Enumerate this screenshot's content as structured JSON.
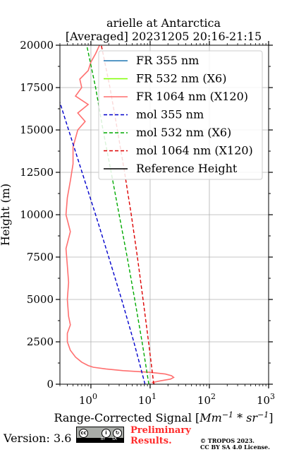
{
  "chart_data": {
    "type": "line",
    "title": "arielle at Antarctica",
    "subtitle": "[Averaged] 20231205 20:16-21:15",
    "xlabel": "Range-Corrected Signal [Mm⁻¹ * sr⁻¹]",
    "xlabel_parts": {
      "base": "Range-Corrected Signal [",
      "mm": "Mm",
      "exp1": "−1",
      "mid": " * sr",
      "exp2": "−1",
      "end": "]"
    },
    "ylabel": "Height (m)",
    "xscale": "log",
    "xlim": [
      0.3,
      1000
    ],
    "ylim": [
      0,
      20000
    ],
    "grid": true,
    "legend_position": "top-right",
    "x_ticks": [
      1,
      10,
      100,
      1000
    ],
    "x_tick_labels": [
      {
        "base": "10",
        "exp": "0"
      },
      {
        "base": "10",
        "exp": "1"
      },
      {
        "base": "10",
        "exp": "2"
      },
      {
        "base": "10",
        "exp": "3"
      }
    ],
    "y_ticks": [
      0,
      2500,
      5000,
      7500,
      10000,
      12500,
      15000,
      17500,
      20000
    ],
    "y_tick_labels": [
      "0",
      "2500",
      "5000",
      "7500",
      "10000",
      "12500",
      "15000",
      "17500",
      "20000"
    ],
    "series": [
      {
        "name": "FR 355 nm",
        "color": "#1f77b4",
        "style": "solid",
        "x": [],
        "y": []
      },
      {
        "name": "FR 532 nm (X6)",
        "color": "#80ff00",
        "style": "solid",
        "x": [],
        "y": []
      },
      {
        "name": "FR 1064 nm (X120)",
        "color": "#ff6f6f",
        "style": "solid",
        "y": [
          0,
          100,
          200,
          300,
          400,
          500,
          600,
          700,
          800,
          900,
          1000,
          1100,
          1300,
          1600,
          2000,
          2500,
          3000,
          3500,
          4000,
          5000,
          6000,
          7000,
          8000,
          9000,
          10000,
          11000,
          12000,
          13000,
          14000,
          15000,
          15500,
          16000,
          16500,
          17000,
          17500,
          18000,
          18500,
          19000,
          19500,
          20000
        ],
        "x": [
          12,
          11,
          15,
          22,
          25,
          23,
          18,
          10,
          3.5,
          1.8,
          1.1,
          0.9,
          0.7,
          0.55,
          0.45,
          0.4,
          0.4,
          0.45,
          0.42,
          0.4,
          0.42,
          0.4,
          0.38,
          0.45,
          0.38,
          0.4,
          0.45,
          0.5,
          0.5,
          0.6,
          0.8,
          0.6,
          0.9,
          0.55,
          0.7,
          0.65,
          0.9,
          1.0,
          1.2,
          1.4
        ]
      },
      {
        "name": "mol 355 nm",
        "color": "#0000cc",
        "style": "dashed",
        "y": [
          0,
          2500,
          5000,
          7500,
          10000,
          12500,
          15000,
          17500
        ],
        "x": [
          8.2,
          5.3,
          3.3,
          2.0,
          1.2,
          0.71,
          0.42,
          0.25
        ]
      },
      {
        "name": "mol 532 nm (X6)",
        "color": "#00aa00",
        "style": "dashed",
        "y": [
          0,
          2500,
          5000,
          7500,
          10000,
          12500,
          15000,
          17500,
          20000
        ],
        "x": [
          9.5,
          7.3,
          5.5,
          4.1,
          3.0,
          2.2,
          1.6,
          1.2,
          0.85
        ]
      },
      {
        "name": "mol 1064 nm (X120)",
        "color": "#dd0000",
        "style": "dashed",
        "y": [
          0,
          2500,
          5000,
          7500,
          10000,
          12500,
          15000,
          17500,
          20000
        ],
        "x": [
          11.5,
          9.4,
          7.6,
          6.1,
          4.8,
          3.7,
          2.8,
          2.1,
          1.5
        ]
      },
      {
        "name": "Reference Height",
        "color": "#000000",
        "style": "solid",
        "x": [],
        "y": []
      }
    ]
  },
  "footer": {
    "version": "Version: 3.6",
    "license_badge": {
      "by": "BY",
      "sa": "SA",
      "cc": "cc",
      "person": "i",
      "share": "↻"
    },
    "preliminary_line1": "Preliminary",
    "preliminary_line2": "Results.",
    "copyright_line1": "© TROPOS 2023.",
    "copyright_line2": "CC BY SA 4.0 License."
  }
}
